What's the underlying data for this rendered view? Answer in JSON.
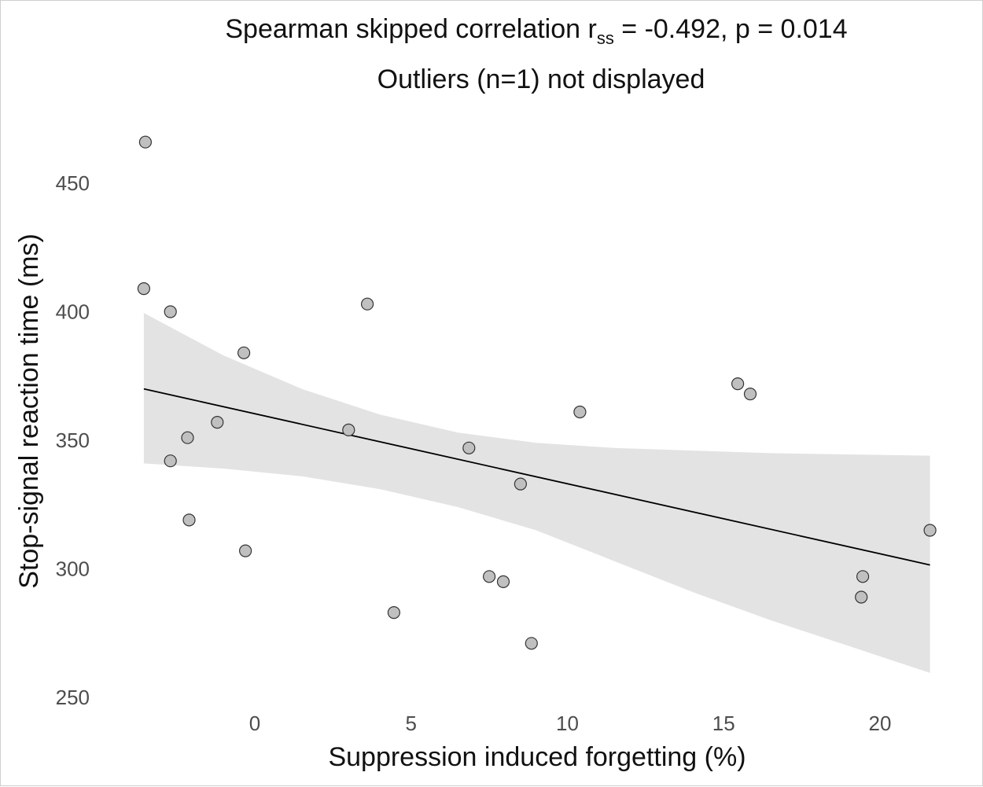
{
  "chart_data": {
    "type": "scatter",
    "title_main": "Spearman skipped correlation r",
    "title_sub": "ss",
    "title_rest": " = -0.492, p = 0.014",
    "subtitle": "Outliers (n=1) not displayed",
    "xlabel": "Suppression induced forgetting (%)",
    "ylabel": "Stop-signal reaction time (ms)",
    "xlim": [
      -4.6,
      22
    ],
    "ylim": [
      245,
      475
    ],
    "xticks": [
      0,
      5,
      10,
      15,
      20
    ],
    "yticks": [
      250,
      300,
      350,
      400,
      450
    ],
    "grid": false,
    "points": [
      {
        "x": -3.5,
        "y": 466
      },
      {
        "x": -3.55,
        "y": 409
      },
      {
        "x": -2.7,
        "y": 400
      },
      {
        "x": 3.6,
        "y": 403
      },
      {
        "x": -0.35,
        "y": 384
      },
      {
        "x": -1.2,
        "y": 357
      },
      {
        "x": -2.15,
        "y": 351
      },
      {
        "x": 3.0,
        "y": 354
      },
      {
        "x": -2.7,
        "y": 342
      },
      {
        "x": 6.85,
        "y": 347
      },
      {
        "x": 8.5,
        "y": 333
      },
      {
        "x": 10.4,
        "y": 361
      },
      {
        "x": 15.45,
        "y": 372
      },
      {
        "x": 15.85,
        "y": 368
      },
      {
        "x": -2.1,
        "y": 319
      },
      {
        "x": -0.3,
        "y": 307
      },
      {
        "x": 7.5,
        "y": 297
      },
      {
        "x": 7.95,
        "y": 295
      },
      {
        "x": 4.45,
        "y": 283
      },
      {
        "x": 8.85,
        "y": 271
      },
      {
        "x": 19.45,
        "y": 297
      },
      {
        "x": 19.4,
        "y": 289
      },
      {
        "x": 21.6,
        "y": 315
      }
    ],
    "fit_line": {
      "x": [
        -3.55,
        21.6
      ],
      "y": [
        370,
        301.5
      ]
    },
    "confidence_band": {
      "x": [
        -3.55,
        -1.0,
        1.5,
        4.0,
        6.5,
        9.0,
        11.5,
        14.0,
        16.5,
        19.0,
        21.6
      ],
      "upper": [
        399.5,
        383,
        370,
        360,
        353,
        349,
        347,
        346,
        345,
        344.5,
        344
      ],
      "lower": [
        341,
        339,
        336,
        331,
        324,
        315,
        303,
        291,
        280,
        270,
        259.5
      ]
    },
    "colors": {
      "point_fill": "#c0c0c0",
      "point_stroke": "#333333",
      "line": "#000000",
      "band": "#e3e3e3"
    }
  }
}
